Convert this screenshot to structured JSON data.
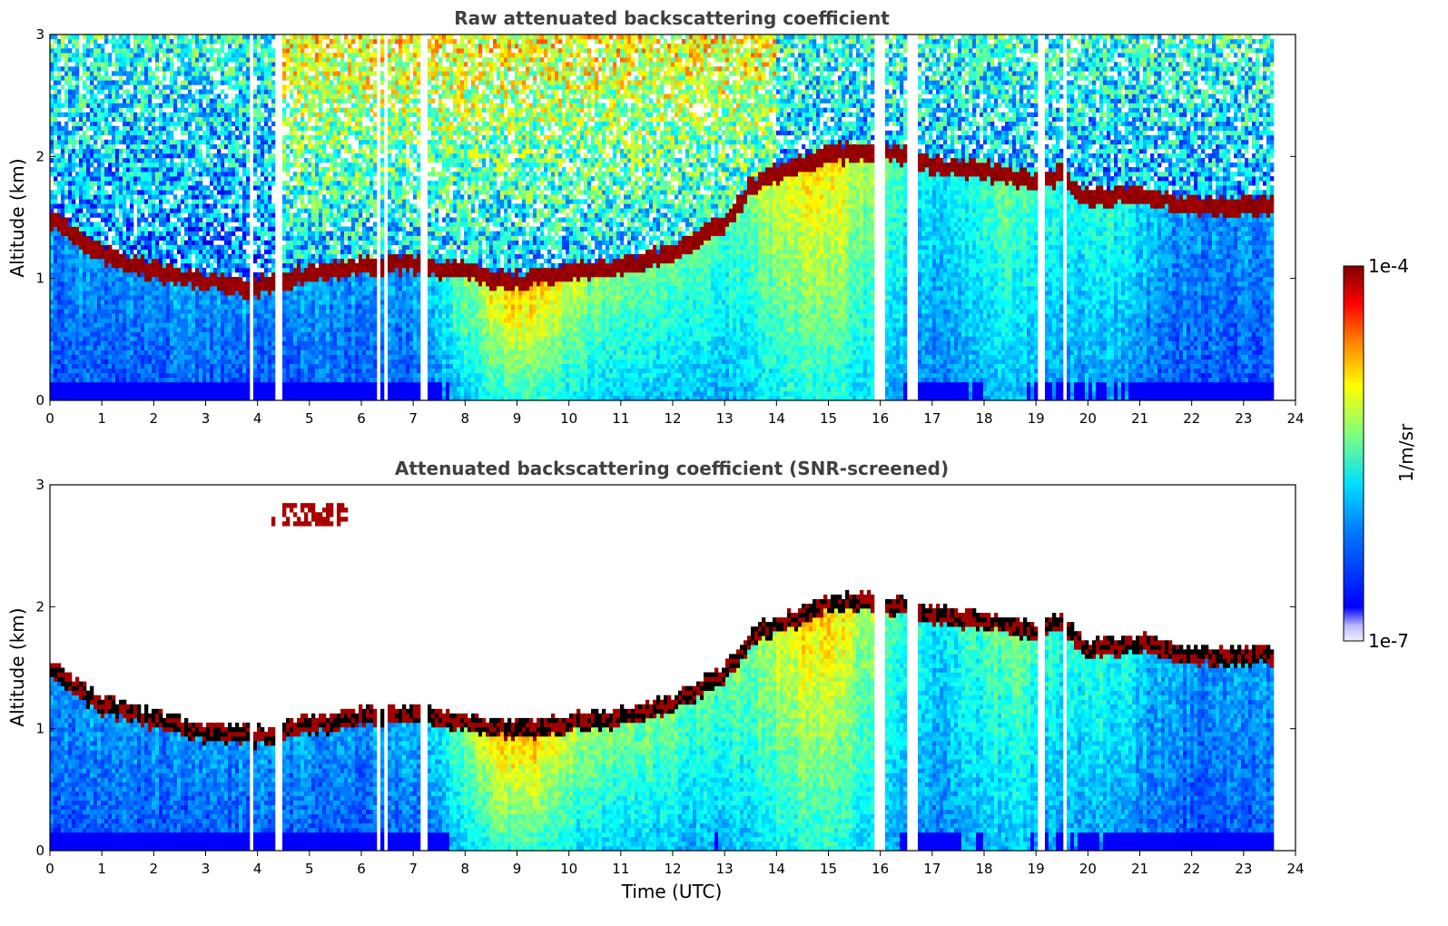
{
  "chart_data": [
    {
      "type": "heatmap",
      "title": "Raw attenuated backscattering coefficient",
      "xlabel": "",
      "ylabel": "Altitude (km)",
      "xlim": [
        0,
        24
      ],
      "ylim": [
        0,
        3
      ],
      "xticks": [
        "0",
        "1",
        "2",
        "3",
        "4",
        "5",
        "6",
        "7",
        "8",
        "9",
        "10",
        "11",
        "12",
        "13",
        "14",
        "15",
        "16",
        "17",
        "18",
        "19",
        "20",
        "21",
        "22",
        "23",
        "24"
      ],
      "yticks": [
        "0",
        "1",
        "2",
        "3"
      ],
      "data_end_hour": 23.65,
      "boundary_layer_top_km": [
        [
          0,
          1.5
        ],
        [
          1,
          1.2
        ],
        [
          2,
          1.07
        ],
        [
          3,
          0.97
        ],
        [
          4,
          0.93
        ],
        [
          5,
          1.03
        ],
        [
          6,
          1.1
        ],
        [
          7,
          1.12
        ],
        [
          8,
          1.05
        ],
        [
          9,
          0.98
        ],
        [
          10,
          1.05
        ],
        [
          11,
          1.1
        ],
        [
          12,
          1.2
        ],
        [
          13,
          1.45
        ],
        [
          13.5,
          1.75
        ],
        [
          14,
          1.85
        ],
        [
          15,
          2.02
        ],
        [
          16,
          2.05
        ],
        [
          17,
          1.93
        ],
        [
          18,
          1.88
        ],
        [
          19,
          1.8
        ],
        [
          19.5,
          1.85
        ],
        [
          20,
          1.65
        ],
        [
          21,
          1.7
        ],
        [
          22,
          1.6
        ],
        [
          23.65,
          1.6
        ]
      ],
      "missing_data_hours": [
        3.9,
        4.4,
        6.35,
        6.45,
        7.2,
        15.95,
        16.05,
        16.55,
        16.65,
        19.1,
        19.55
      ]
    },
    {
      "type": "heatmap",
      "title": "Attenuated backscattering coefficient (SNR-screened)",
      "xlabel": "Time (UTC)",
      "ylabel": "Altitude (km)",
      "xlim": [
        0,
        24
      ],
      "ylim": [
        0,
        3
      ],
      "xticks": [
        "0",
        "1",
        "2",
        "3",
        "4",
        "5",
        "6",
        "7",
        "8",
        "9",
        "10",
        "11",
        "12",
        "13",
        "14",
        "15",
        "16",
        "17",
        "18",
        "19",
        "20",
        "21",
        "22",
        "23",
        "24"
      ],
      "yticks": [
        "0",
        "1",
        "2",
        "3"
      ],
      "data_end_hour": 23.65,
      "isolated_layer": {
        "start_hour": 4.3,
        "end_hour": 5.8,
        "altitude_km": 2.75
      }
    }
  ],
  "colorbar": {
    "max_label": "1e-4",
    "min_label": "1e-7",
    "unit_label": "1/m/sr",
    "colormap": "jet"
  }
}
